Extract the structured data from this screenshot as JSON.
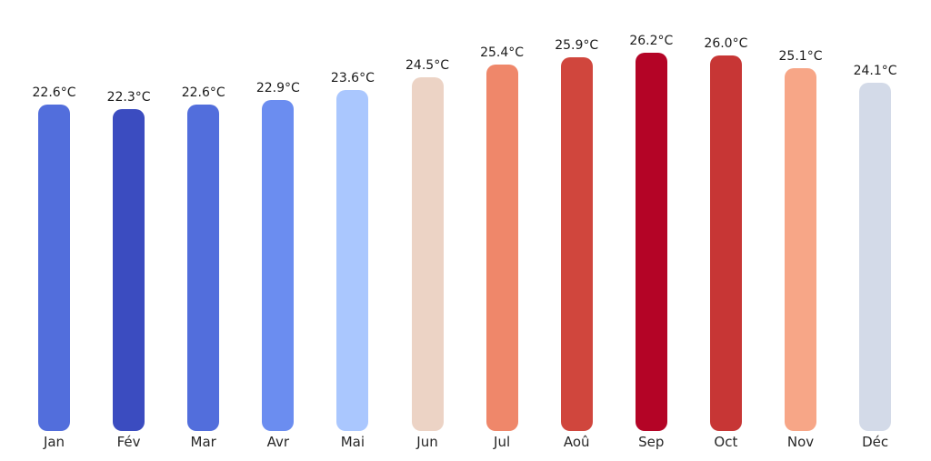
{
  "chart_data": {
    "type": "bar",
    "title": "",
    "xlabel": "",
    "ylabel": "",
    "unit": "°C",
    "grid": false,
    "legend": null,
    "colormap": "coolwarm",
    "background_color": "#ffffff",
    "value_label_color": "#1a1a1a",
    "tick_label_color": "#262626",
    "ylim": [
      0,
      29.9
    ],
    "categories": [
      "Jan",
      "Fév",
      "Mar",
      "Avr",
      "Mai",
      "Jun",
      "Jul",
      "Aoû",
      "Sep",
      "Oct",
      "Nov",
      "Déc"
    ],
    "values": [
      22.6,
      22.3,
      22.6,
      22.9,
      23.6,
      24.5,
      25.4,
      25.9,
      26.2,
      26.0,
      25.1,
      24.1
    ],
    "value_labels": [
      "22.6°C",
      "22.3°C",
      "22.6°C",
      "22.9°C",
      "23.6°C",
      "24.5°C",
      "25.4°C",
      "25.9°C",
      "26.2°C",
      "26.0°C",
      "25.1°C",
      "24.1°C"
    ],
    "bar_colors": [
      "#526edc",
      "#3b4cc0",
      "#526edc",
      "#6b8df0",
      "#aac7fe",
      "#ecd3c5",
      "#ef876a",
      "#d0463d",
      "#b40426",
      "#c73635",
      "#f7a687",
      "#d3dae8"
    ],
    "category_slugs": [
      "jan",
      "fev",
      "mar",
      "avr",
      "mai",
      "jun",
      "jul",
      "aou",
      "sep",
      "oct",
      "nov",
      "dec"
    ]
  }
}
